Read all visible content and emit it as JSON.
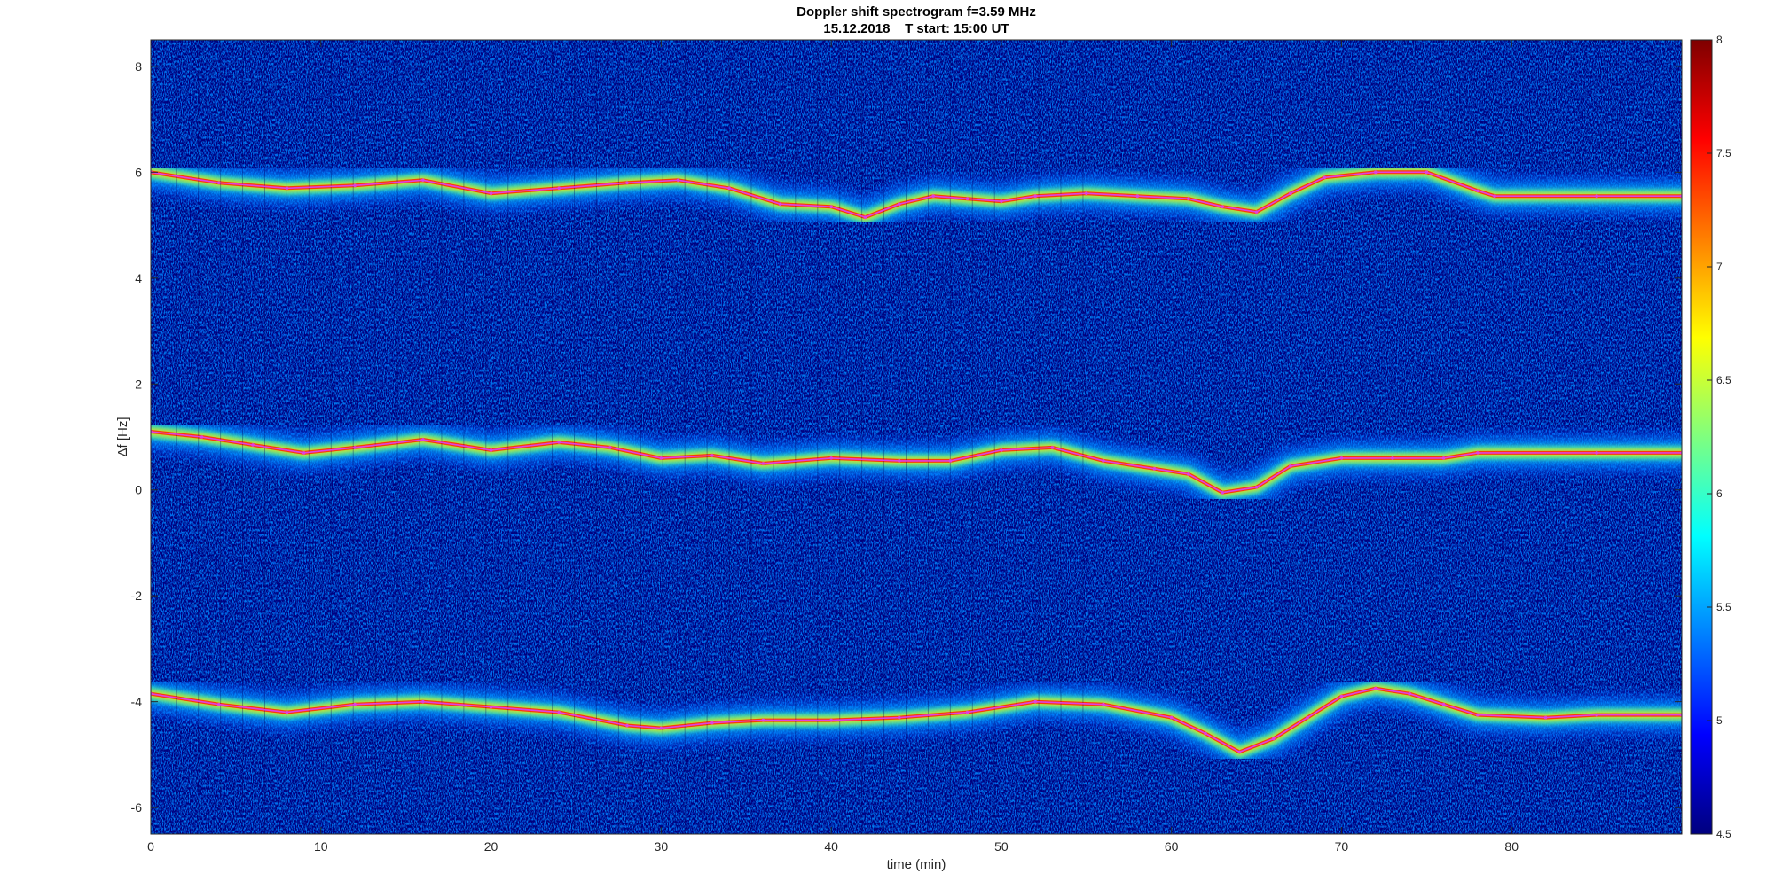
{
  "chart_data": {
    "type": "heatmap",
    "title": "Doppler shift spectrogram f=3.59 MHz",
    "subtitle": "15.12.2018    T start: 15:00 UT",
    "xlabel": "time (min)",
    "ylabel": "Δf [Hz]",
    "xlim": [
      0,
      90
    ],
    "ylim": [
      -6.5,
      8.5
    ],
    "xticks": [
      0,
      10,
      20,
      30,
      40,
      50,
      60,
      70,
      80
    ],
    "yticks": [
      -6,
      -4,
      -2,
      0,
      2,
      4,
      6,
      8
    ],
    "colorbar": {
      "colormap": "jet",
      "lim": [
        4.5,
        8
      ],
      "ticks": [
        4.5,
        5,
        5.5,
        6,
        6.5,
        7,
        7.5,
        8
      ],
      "colors": [
        "#00007f",
        "#0000ff",
        "#007fff",
        "#00ffff",
        "#7fff7f",
        "#ffff00",
        "#ff7f00",
        "#ff0000",
        "#7f0000"
      ]
    },
    "traces": [
      {
        "band": "upper",
        "x": [
          0,
          4,
          8,
          12,
          16,
          20,
          24,
          28,
          31,
          34,
          37,
          40,
          42,
          44,
          46,
          48,
          50,
          52,
          55,
          58,
          61,
          63,
          65,
          67,
          69,
          72,
          75,
          78,
          79,
          85,
          90
        ],
        "y": [
          6.0,
          5.8,
          5.7,
          5.75,
          5.85,
          5.6,
          5.7,
          5.8,
          5.85,
          5.7,
          5.4,
          5.35,
          5.15,
          5.4,
          5.55,
          5.5,
          5.45,
          5.55,
          5.6,
          5.55,
          5.5,
          5.35,
          5.25,
          5.6,
          5.9,
          6.0,
          6.0,
          5.65,
          5.55,
          5.55,
          5.55
        ]
      },
      {
        "band": "middle",
        "x": [
          0,
          3,
          6,
          9,
          12,
          16,
          20,
          24,
          27,
          30,
          33,
          36,
          40,
          44,
          47,
          50,
          53,
          56,
          59,
          61,
          63,
          65,
          67,
          70,
          73,
          76,
          78,
          85,
          90
        ],
        "y": [
          1.1,
          1.0,
          0.85,
          0.7,
          0.8,
          0.95,
          0.75,
          0.9,
          0.8,
          0.6,
          0.65,
          0.5,
          0.6,
          0.55,
          0.55,
          0.75,
          0.8,
          0.55,
          0.4,
          0.3,
          -0.05,
          0.05,
          0.45,
          0.6,
          0.6,
          0.6,
          0.7,
          0.7,
          0.7
        ]
      },
      {
        "band": "lower",
        "x": [
          0,
          4,
          8,
          12,
          16,
          20,
          24,
          28,
          30,
          33,
          36,
          40,
          44,
          48,
          52,
          56,
          60,
          62,
          64,
          66,
          68,
          70,
          72,
          74,
          76,
          78,
          82,
          85,
          90
        ],
        "y": [
          -3.85,
          -4.05,
          -4.2,
          -4.05,
          -4.0,
          -4.1,
          -4.2,
          -4.45,
          -4.5,
          -4.4,
          -4.35,
          -4.35,
          -4.3,
          -4.2,
          -4.0,
          -4.05,
          -4.3,
          -4.6,
          -4.95,
          -4.7,
          -4.3,
          -3.9,
          -3.75,
          -3.85,
          -4.05,
          -4.25,
          -4.3,
          -4.25,
          -4.25
        ]
      }
    ],
    "trace_color": "#e040e0",
    "background_color": "#00007f"
  }
}
